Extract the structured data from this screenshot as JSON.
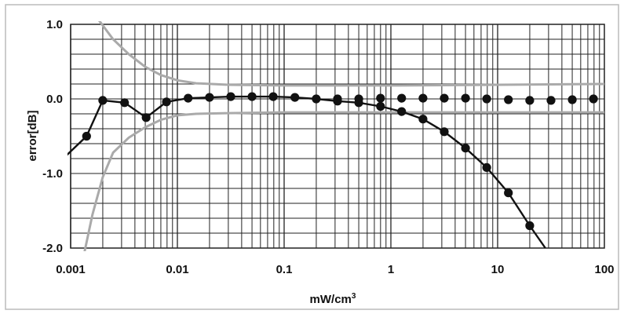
{
  "chart_data": {
    "type": "line",
    "title": "",
    "xlabel": "mW/cm",
    "xlabel_superscript": "3",
    "ylabel": "error[dB]",
    "xscale": "log",
    "xlim": [
      0.001,
      100
    ],
    "ylim": [
      -2.0,
      1.0
    ],
    "grid": true,
    "legend": "none",
    "x_tick_labels": [
      "0.001",
      "0.01",
      "0.1",
      "1",
      "10",
      "100"
    ],
    "y_tick_labels": [
      "1.0",
      "0.0",
      "-1.0",
      "-2.0"
    ],
    "x_ticks": [
      0.001,
      0.01,
      0.1,
      1,
      10,
      100
    ],
    "y_ticks": [
      1.0,
      0.0,
      -1.0,
      -2.0
    ],
    "series": [
      {
        "style": "solid-line-with-markers",
        "color": "#111111",
        "line_x": [
          0.00085,
          0.00141,
          0.002,
          0.0032,
          0.0051,
          0.0079,
          0.0126,
          0.02,
          0.0316,
          0.05,
          0.079,
          0.126,
          0.2,
          0.316,
          0.5,
          0.8,
          1.26,
          2.0,
          3.16,
          5.0,
          7.9,
          12.6,
          20.0,
          28.0
        ],
        "line_y": [
          -0.8,
          -0.5,
          -0.02,
          -0.05,
          -0.25,
          -0.04,
          0.01,
          0.02,
          0.03,
          0.03,
          0.03,
          0.02,
          0.0,
          -0.03,
          -0.05,
          -0.1,
          -0.17,
          -0.27,
          -0.44,
          -0.66,
          -0.92,
          -1.26,
          -1.7,
          -2.0
        ],
        "marker_x": [
          0.00141,
          0.002,
          0.0032,
          0.0051,
          0.0079,
          0.0126,
          0.02,
          0.0316,
          0.05,
          0.079,
          0.126,
          0.2,
          0.316,
          0.5,
          0.8,
          1.26,
          2.0,
          3.16,
          5.0,
          7.9,
          12.6,
          20.0
        ],
        "marker_y": [
          -0.5,
          -0.02,
          -0.05,
          -0.25,
          -0.04,
          0.01,
          0.02,
          0.03,
          0.03,
          0.03,
          0.02,
          0.0,
          -0.03,
          -0.05,
          -0.1,
          -0.17,
          -0.27,
          -0.44,
          -0.66,
          -0.92,
          -1.26,
          -1.7
        ]
      },
      {
        "style": "markers-only",
        "color": "#111111",
        "marker_x": [
          0.316,
          0.5,
          0.8,
          1.26,
          2.0,
          3.16,
          5.0,
          7.9,
          12.6,
          20.0,
          31.6,
          50.0,
          79.0
        ],
        "marker_y": [
          0.0,
          0.0,
          0.01,
          0.01,
          0.01,
          0.01,
          0.01,
          0.0,
          -0.01,
          -0.02,
          -0.02,
          -0.01,
          0.0
        ]
      },
      {
        "style": "gray-bound-upper",
        "color": "#aaaaaa",
        "x": [
          0.00185,
          0.0025,
          0.0035,
          0.005,
          0.007,
          0.01,
          0.015,
          0.03,
          0.1,
          1,
          10,
          100
        ],
        "y": [
          1.05,
          0.8,
          0.6,
          0.43,
          0.32,
          0.25,
          0.21,
          0.19,
          0.18,
          0.18,
          0.19,
          0.2
        ]
      },
      {
        "style": "gray-bound-lower",
        "color": "#aaaaaa",
        "x": [
          0.00135,
          0.0016,
          0.002,
          0.0025,
          0.0035,
          0.005,
          0.007,
          0.01,
          0.015,
          0.03,
          0.1,
          1,
          10,
          100
        ],
        "y": [
          -2.05,
          -1.55,
          -1.05,
          -0.72,
          -0.52,
          -0.38,
          -0.28,
          -0.22,
          -0.2,
          -0.19,
          -0.18,
          -0.18,
          -0.18,
          -0.18
        ]
      }
    ]
  }
}
